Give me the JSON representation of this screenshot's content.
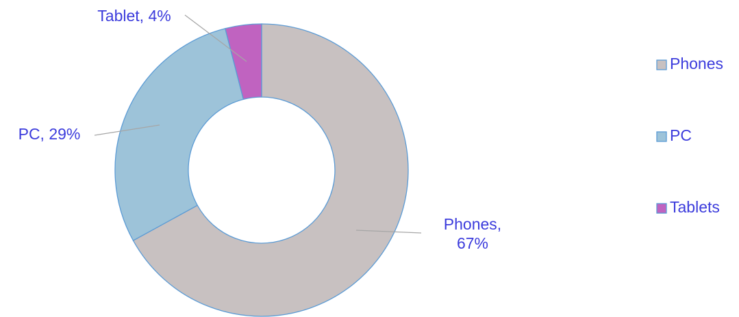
{
  "chart_data": {
    "type": "donut",
    "categories": [
      "Phones",
      "PC",
      "Tablets"
    ],
    "values": [
      67,
      29,
      4
    ],
    "value_labels": [
      "Phones, 67%",
      "PC, 29%",
      "Tablet, 4%"
    ],
    "colors": [
      "#c8c1c1",
      "#9dc3d9",
      "#c063c0"
    ],
    "legend": "right"
  }
}
